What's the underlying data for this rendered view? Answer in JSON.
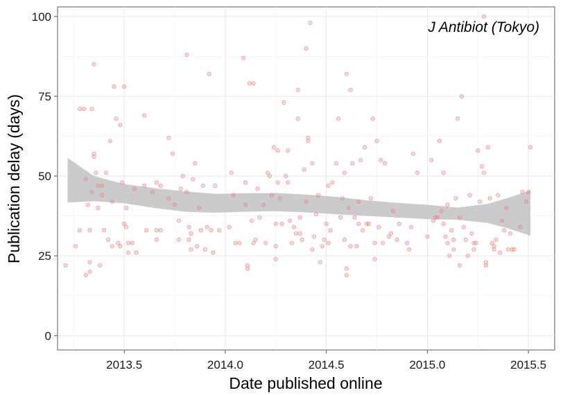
{
  "chart_data": {
    "type": "scatter",
    "annotation": "J Antibiot (Tokyo)",
    "xlabel": "Date published online",
    "ylabel": "Publication delay (days)",
    "xlim": [
      2013.17,
      2015.63
    ],
    "ylim": [
      -4.5,
      103
    ],
    "x_ticks": [
      2013.5,
      2014.0,
      2014.5,
      2015.0,
      2015.5
    ],
    "x_tick_labels": [
      "2013.5",
      "2014.0",
      "2014.5",
      "2015.0",
      "2015.5"
    ],
    "y_ticks": [
      0,
      25,
      50,
      75,
      100
    ],
    "y_tick_labels": [
      "0",
      "25",
      "50",
      "75",
      "100"
    ],
    "grid": true,
    "point_color": "#f08080",
    "band_color": "#c8c8c8",
    "points": [
      [
        2013.21,
        22
      ],
      [
        2013.26,
        28
      ],
      [
        2013.28,
        33
      ],
      [
        2013.28,
        71
      ],
      [
        2013.3,
        71
      ],
      [
        2013.31,
        19
      ],
      [
        2013.31,
        49
      ],
      [
        2013.32,
        41
      ],
      [
        2013.33,
        20
      ],
      [
        2013.33,
        23
      ],
      [
        2013.33,
        33
      ],
      [
        2013.34,
        45
      ],
      [
        2013.34,
        71
      ],
      [
        2013.35,
        85
      ],
      [
        2013.35,
        57
      ],
      [
        2013.35,
        56
      ],
      [
        2013.36,
        51
      ],
      [
        2013.37,
        40
      ],
      [
        2013.37,
        47
      ],
      [
        2013.38,
        22
      ],
      [
        2013.39,
        44
      ],
      [
        2013.39,
        47
      ],
      [
        2013.4,
        33
      ],
      [
        2013.41,
        51
      ],
      [
        2013.42,
        30
      ],
      [
        2013.43,
        61
      ],
      [
        2013.44,
        28
      ],
      [
        2013.44,
        42
      ],
      [
        2013.45,
        78
      ],
      [
        2013.46,
        68
      ],
      [
        2013.47,
        29
      ],
      [
        2013.48,
        66
      ],
      [
        2013.48,
        28
      ],
      [
        2013.49,
        48
      ],
      [
        2013.5,
        78
      ],
      [
        2013.5,
        35
      ],
      [
        2013.51,
        34
      ],
      [
        2013.51,
        40
      ],
      [
        2013.52,
        26
      ],
      [
        2013.52,
        29
      ],
      [
        2013.54,
        29
      ],
      [
        2013.55,
        46
      ],
      [
        2013.56,
        26
      ],
      [
        2013.6,
        47
      ],
      [
        2013.6,
        69
      ],
      [
        2013.61,
        33
      ],
      [
        2013.64,
        45
      ],
      [
        2013.66,
        33
      ],
      [
        2013.66,
        30
      ],
      [
        2013.66,
        48
      ],
      [
        2013.68,
        33
      ],
      [
        2013.68,
        47
      ],
      [
        2013.72,
        62
      ],
      [
        2013.72,
        43
      ],
      [
        2013.74,
        57
      ],
      [
        2013.75,
        41
      ],
      [
        2013.77,
        36
      ],
      [
        2013.77,
        30
      ],
      [
        2013.78,
        46
      ],
      [
        2013.79,
        50
      ],
      [
        2013.81,
        88
      ],
      [
        2013.81,
        45
      ],
      [
        2013.82,
        30
      ],
      [
        2013.82,
        34
      ],
      [
        2013.83,
        32
      ],
      [
        2013.83,
        27
      ],
      [
        2013.84,
        49
      ],
      [
        2013.85,
        54
      ],
      [
        2013.86,
        28
      ],
      [
        2013.87,
        40
      ],
      [
        2013.88,
        33
      ],
      [
        2013.89,
        47
      ],
      [
        2013.9,
        27
      ],
      [
        2013.91,
        34
      ],
      [
        2013.92,
        82
      ],
      [
        2013.93,
        33
      ],
      [
        2013.94,
        26
      ],
      [
        2013.95,
        47
      ],
      [
        2013.97,
        33
      ],
      [
        2014.02,
        34
      ],
      [
        2014.03,
        51
      ],
      [
        2014.04,
        44
      ],
      [
        2014.05,
        29
      ],
      [
        2014.07,
        29
      ],
      [
        2014.09,
        87
      ],
      [
        2014.1,
        48
      ],
      [
        2014.1,
        41
      ],
      [
        2014.11,
        22
      ],
      [
        2014.11,
        21
      ],
      [
        2014.12,
        79
      ],
      [
        2014.13,
        36
      ],
      [
        2014.14,
        79
      ],
      [
        2014.14,
        29
      ],
      [
        2014.15,
        30
      ],
      [
        2014.16,
        46
      ],
      [
        2014.17,
        37
      ],
      [
        2014.19,
        41
      ],
      [
        2014.2,
        29
      ],
      [
        2014.21,
        51
      ],
      [
        2014.22,
        50
      ],
      [
        2014.23,
        44
      ],
      [
        2014.24,
        59
      ],
      [
        2014.25,
        24
      ],
      [
        2014.25,
        28
      ],
      [
        2014.25,
        35
      ],
      [
        2014.26,
        58
      ],
      [
        2014.26,
        48
      ],
      [
        2014.27,
        43
      ],
      [
        2014.28,
        35
      ],
      [
        2014.29,
        73
      ],
      [
        2014.3,
        50
      ],
      [
        2014.31,
        48
      ],
      [
        2014.31,
        58
      ],
      [
        2014.32,
        36
      ],
      [
        2014.33,
        29
      ],
      [
        2014.34,
        34
      ],
      [
        2014.35,
        32
      ],
      [
        2014.36,
        77
      ],
      [
        2014.36,
        68
      ],
      [
        2014.37,
        37
      ],
      [
        2014.37,
        32
      ],
      [
        2014.38,
        30
      ],
      [
        2014.39,
        52
      ],
      [
        2014.4,
        90
      ],
      [
        2014.4,
        42
      ],
      [
        2014.41,
        62
      ],
      [
        2014.41,
        61
      ],
      [
        2014.42,
        98
      ],
      [
        2014.43,
        27
      ],
      [
        2014.43,
        54
      ],
      [
        2014.44,
        31
      ],
      [
        2014.45,
        38
      ],
      [
        2014.46,
        44
      ],
      [
        2014.47,
        23
      ],
      [
        2014.48,
        28
      ],
      [
        2014.49,
        30
      ],
      [
        2014.5,
        35
      ],
      [
        2014.51,
        29
      ],
      [
        2014.51,
        47
      ],
      [
        2014.52,
        33
      ],
      [
        2014.53,
        48
      ],
      [
        2014.55,
        54
      ],
      [
        2014.56,
        68
      ],
      [
        2014.57,
        37
      ],
      [
        2014.58,
        43
      ],
      [
        2014.59,
        51
      ],
      [
        2014.59,
        30
      ],
      [
        2014.6,
        82
      ],
      [
        2014.6,
        21
      ],
      [
        2014.6,
        19
      ],
      [
        2014.61,
        40
      ],
      [
        2014.62,
        77
      ],
      [
        2014.62,
        28
      ],
      [
        2014.63,
        54
      ],
      [
        2014.64,
        37
      ],
      [
        2014.65,
        28
      ],
      [
        2014.66,
        42
      ],
      [
        2014.66,
        35
      ],
      [
        2014.67,
        55
      ],
      [
        2014.68,
        33
      ],
      [
        2014.69,
        59
      ],
      [
        2014.7,
        35
      ],
      [
        2014.71,
        35
      ],
      [
        2014.72,
        43
      ],
      [
        2014.73,
        68
      ],
      [
        2014.74,
        29
      ],
      [
        2014.74,
        24
      ],
      [
        2014.75,
        61
      ],
      [
        2014.76,
        34
      ],
      [
        2014.77,
        55
      ],
      [
        2014.78,
        29
      ],
      [
        2014.79,
        54
      ],
      [
        2014.81,
        31
      ],
      [
        2014.82,
        32
      ],
      [
        2014.83,
        39
      ],
      [
        2014.85,
        30
      ],
      [
        2014.86,
        35
      ],
      [
        2014.9,
        29
      ],
      [
        2014.91,
        27
      ],
      [
        2014.92,
        34
      ],
      [
        2014.93,
        57
      ],
      [
        2014.95,
        51
      ],
      [
        2015.0,
        31
      ],
      [
        2015.02,
        55
      ],
      [
        2015.03,
        36
      ],
      [
        2015.04,
        37
      ],
      [
        2015.05,
        37
      ],
      [
        2015.06,
        61
      ],
      [
        2015.07,
        39
      ],
      [
        2015.08,
        35
      ],
      [
        2015.08,
        51
      ],
      [
        2015.09,
        31
      ],
      [
        2015.1,
        29
      ],
      [
        2015.1,
        41
      ],
      [
        2015.11,
        25
      ],
      [
        2015.12,
        33
      ],
      [
        2015.13,
        30
      ],
      [
        2015.13,
        27
      ],
      [
        2015.14,
        43
      ],
      [
        2015.15,
        68
      ],
      [
        2015.16,
        22
      ],
      [
        2015.16,
        37
      ],
      [
        2015.17,
        75
      ],
      [
        2015.18,
        34
      ],
      [
        2015.19,
        30
      ],
      [
        2015.2,
        25
      ],
      [
        2015.21,
        44
      ],
      [
        2015.22,
        32
      ],
      [
        2015.23,
        29
      ],
      [
        2015.23,
        27
      ],
      [
        2015.24,
        29
      ],
      [
        2015.25,
        58
      ],
      [
        2015.26,
        42
      ],
      [
        2015.27,
        53
      ],
      [
        2015.28,
        100
      ],
      [
        2015.28,
        51
      ],
      [
        2015.29,
        22
      ],
      [
        2015.29,
        23
      ],
      [
        2015.3,
        59
      ],
      [
        2015.31,
        43
      ],
      [
        2015.32,
        29
      ],
      [
        2015.33,
        27
      ],
      [
        2015.33,
        28
      ],
      [
        2015.34,
        30
      ],
      [
        2015.35,
        44
      ],
      [
        2015.36,
        26
      ],
      [
        2015.37,
        36
      ],
      [
        2015.38,
        33
      ],
      [
        2015.39,
        40
      ],
      [
        2015.4,
        27
      ],
      [
        2015.41,
        32
      ],
      [
        2015.42,
        27
      ],
      [
        2015.43,
        27
      ],
      [
        2015.46,
        34
      ],
      [
        2015.47,
        45
      ],
      [
        2015.49,
        42
      ],
      [
        2015.5,
        45
      ],
      [
        2015.51,
        59
      ]
    ],
    "smooth": {
      "x": [
        2013.22,
        2013.35,
        2013.5,
        2013.65,
        2013.8,
        2013.95,
        2014.1,
        2014.25,
        2014.4,
        2014.55,
        2014.7,
        2014.85,
        2015.0,
        2015.15,
        2015.3,
        2015.4,
        2015.51
      ],
      "lower": [
        41.7,
        42.1,
        41.5,
        40.0,
        38.8,
        38.5,
        38.8,
        39.0,
        38.6,
        38.0,
        37.5,
        37.0,
        36.5,
        36.3,
        35.3,
        33.6,
        31.3
      ],
      "upper": [
        55.7,
        50.0,
        47.5,
        46.2,
        45.2,
        44.4,
        44.6,
        44.7,
        44.2,
        43.5,
        42.4,
        41.6,
        41.0,
        40.1,
        41.3,
        43.2,
        45.5
      ]
    }
  }
}
